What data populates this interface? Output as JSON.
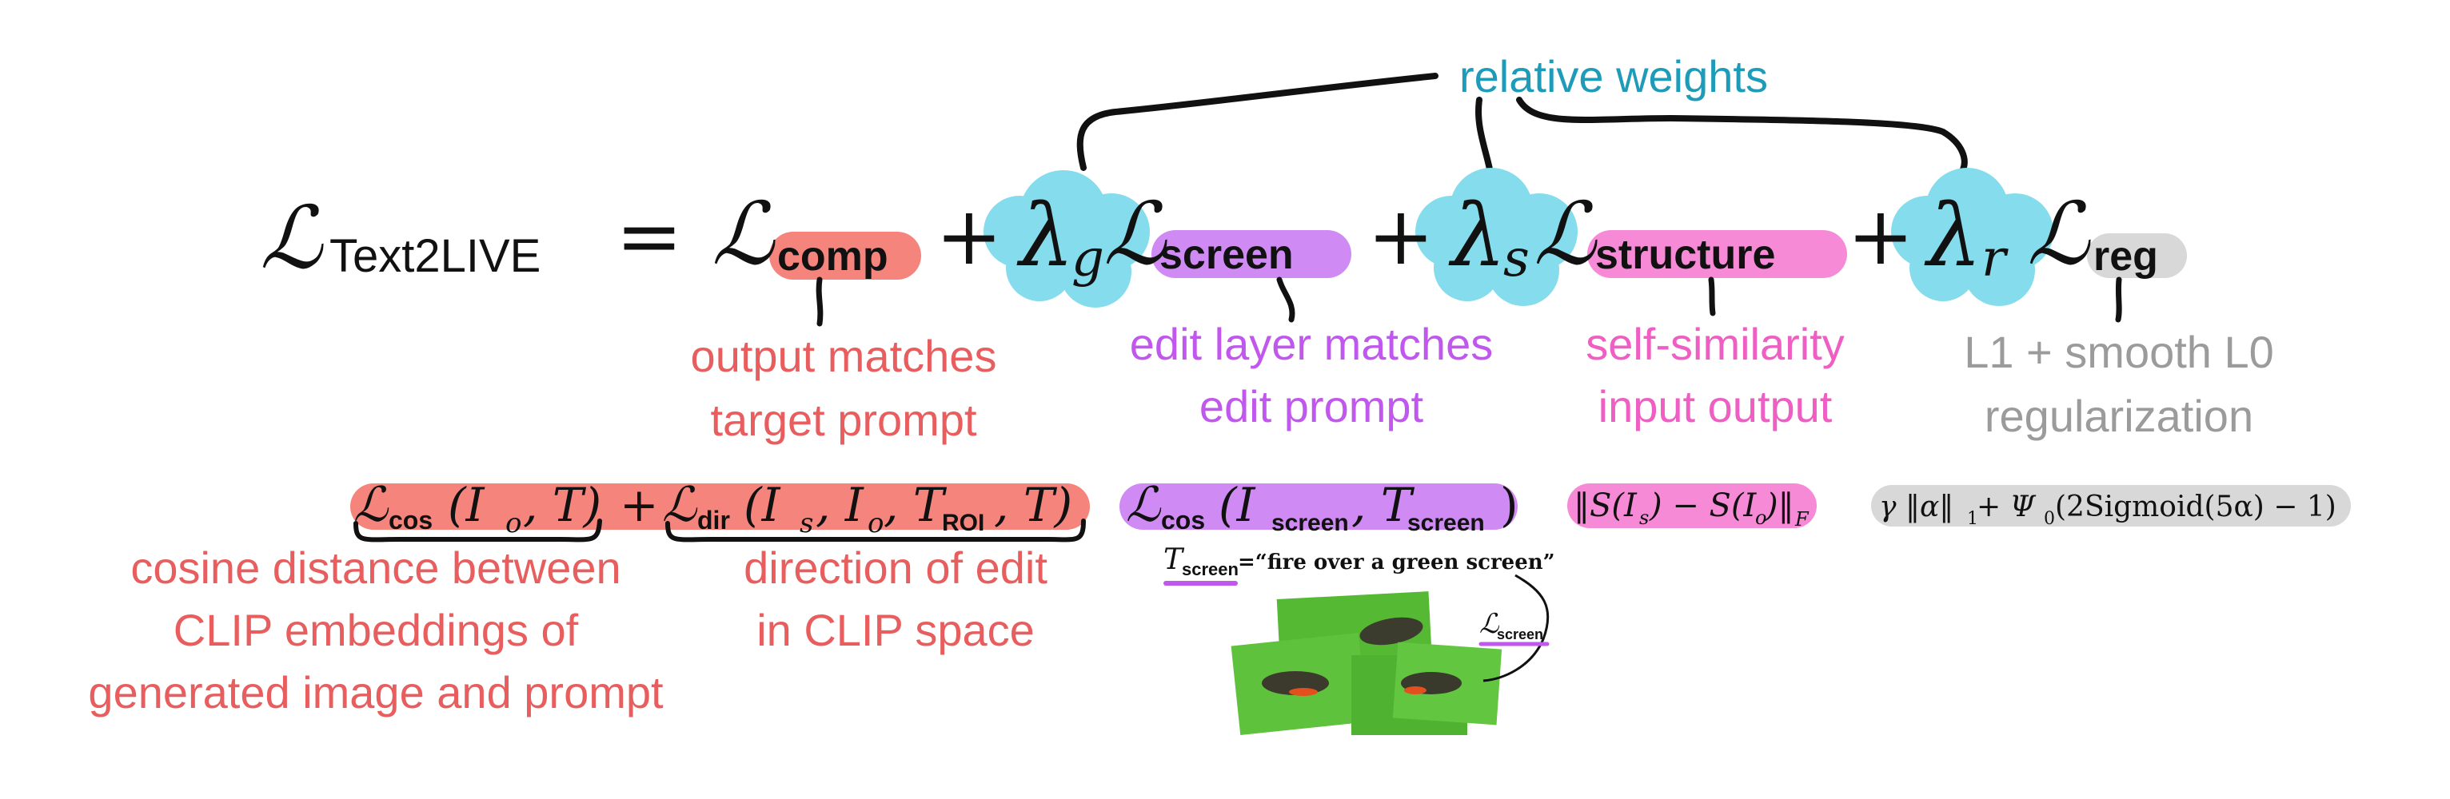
{
  "colors": {
    "red": "#e85e5e",
    "purple": "#c158ee",
    "pink": "#ee5ec3",
    "gray": "#9b9b9b",
    "teal": "#1d9bb8",
    "comp_highlight": "#f4847c",
    "screen_highlight": "#cf8bf3",
    "structure_highlight": "#f78ad6",
    "reg_highlight": "#d8d8d8",
    "cloud": "#84dcec",
    "ink": "#111111",
    "green_screen": "#5fc23c"
  },
  "top_label": "relative weights",
  "equation": {
    "lhs_symbol": "ℒ",
    "lhs_subscript": "Text2LIVE",
    "equals": "=",
    "plus": "+",
    "loss_symbol": "ℒ",
    "comp_subscript": "comp",
    "lambda_g": "λ",
    "lambda_g_sub": "g",
    "screen_subscript": "screen",
    "lambda_s": "λ",
    "lambda_s_sub": "s",
    "structure_subscript": "structure",
    "lambda_r": "λ",
    "lambda_r_sub": "r",
    "reg_subscript": "reg"
  },
  "descriptions": {
    "comp": [
      "output matches",
      "target prompt"
    ],
    "screen": [
      "edit layer matches",
      "edit prompt"
    ],
    "structure": [
      "self-similarity",
      "input output"
    ],
    "reg": [
      "L1 + smooth L0",
      "regularization"
    ]
  },
  "expansions": {
    "comp_cos": {
      "symbol": "ℒ",
      "sub": "cos",
      "args": "(I",
      "args_sub1": "o",
      "args_rest": ", T)"
    },
    "comp_plus": "+",
    "comp_dir": {
      "symbol": "ℒ",
      "sub": "dir",
      "args": "(I",
      "s_sub": "s",
      "mid": ", I",
      "o_sub": "o",
      "mid2": ", T",
      "roi_sub": "ROI",
      "end": ", T)"
    },
    "screen_cos": {
      "symbol": "ℒ",
      "sub": "cos",
      "open": "(I",
      "i_sub": "screen",
      "mid": ", T",
      "t_sub": "screen",
      "close": ")"
    },
    "structure": "‖S(I",
    "structure_s": "s",
    "structure_mid": ") − S(I",
    "structure_o": "o",
    "structure_end": ")‖",
    "structure_F": "F",
    "reg": "γ ‖α‖",
    "reg_1": "1",
    "reg_rest": " + Ψ",
    "reg_0": "0",
    "reg_end": "(2Sigmoid(5α) − 1)"
  },
  "notes": {
    "cos": [
      "cosine distance between",
      "CLIP embeddings of",
      "generated image and prompt"
    ],
    "dir": [
      "direction of edit",
      "in CLIP space"
    ]
  },
  "screen_example": {
    "t_symbol": "T",
    "t_sub": "screen",
    "prompt": "=“fire over a green screen”",
    "loss_symbol": "ℒ",
    "loss_sub": "screen"
  }
}
